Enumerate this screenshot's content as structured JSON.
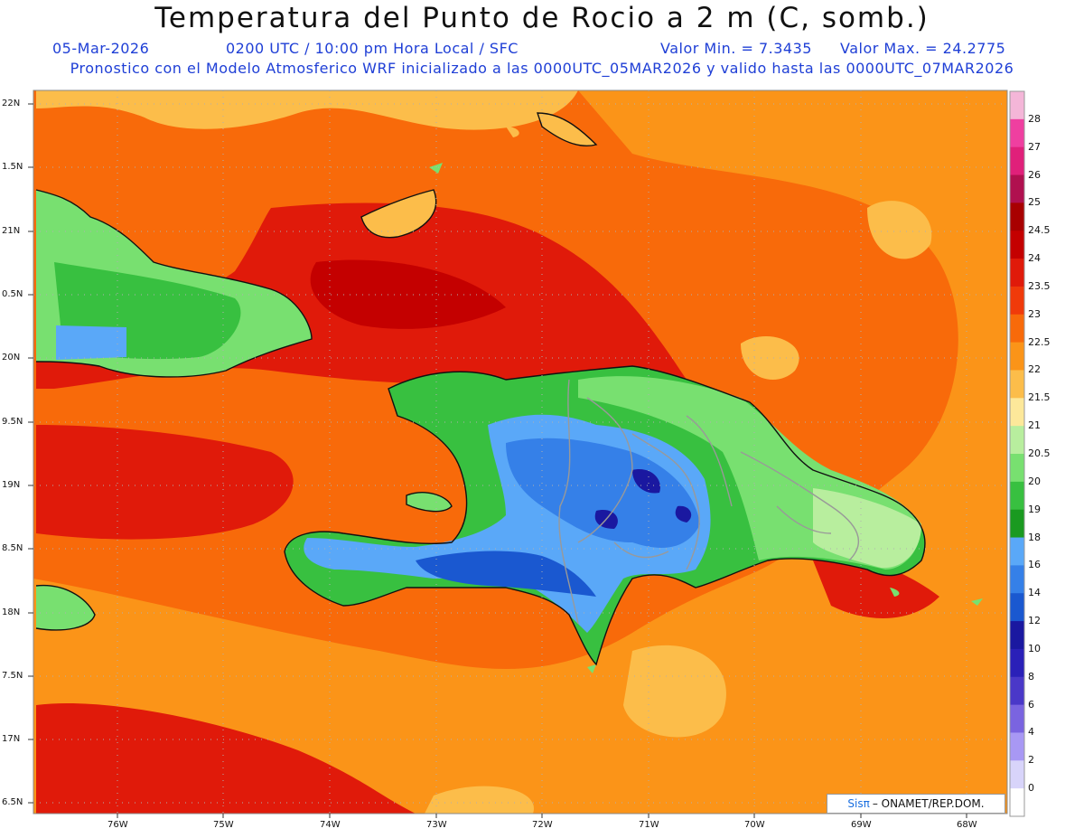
{
  "title": "Temperatura del Punto de Rocio a 2 m (C, somb.)",
  "header": {
    "date": "05-Mar-2026",
    "time": "0200 UTC / 10:00 pm Hora Local / SFC",
    "vmin": "Valor Min. = 7.3435",
    "vmax": "Valor Max. = 24.2775",
    "model": "Pronostico con el Modelo Atmosferico WRF inicializado a las 0000UTC_05MAR2026 y valido hasta las  0000UTC_07MAR2026"
  },
  "lat_labels": [
    "22N",
    "1.5N",
    "21N",
    "0.5N",
    "20N",
    "9.5N",
    "19N",
    "8.5N",
    "18N",
    "7.5N",
    "17N",
    "6.5N"
  ],
  "lon_labels": [
    "76W",
    "75W",
    "74W",
    "73W",
    "72W",
    "71W",
    "70W",
    "69W",
    "68W"
  ],
  "colorbar": {
    "labels": [
      "28",
      "27",
      "26",
      "25",
      "24.5",
      "24",
      "23.5",
      "23",
      "22.5",
      "22",
      "21.5",
      "21",
      "20.5",
      "20",
      "19",
      "18",
      "16",
      "14",
      "12",
      "10",
      "8",
      "6",
      "4",
      "2",
      "0"
    ],
    "colors": [
      "#f4b6d8",
      "#ef3fa0",
      "#e0207a",
      "#b0104f",
      "#a80000",
      "#c40000",
      "#e01a0a",
      "#f03a0a",
      "#f86a0a",
      "#fb9418",
      "#fcbd4a",
      "#fde89a",
      "#b8ee9e",
      "#78e070",
      "#38c040",
      "#1a9a20",
      "#5aa8f8",
      "#3580e8",
      "#1a58d0",
      "#1a18a0",
      "#2a20b8",
      "#4a38c8",
      "#7a64e0",
      "#a898f4",
      "#d8d4fa",
      "#ffffff"
    ]
  },
  "credit": {
    "brand": "Sisπ",
    "text": "– ONAMET/REP.DOM."
  }
}
